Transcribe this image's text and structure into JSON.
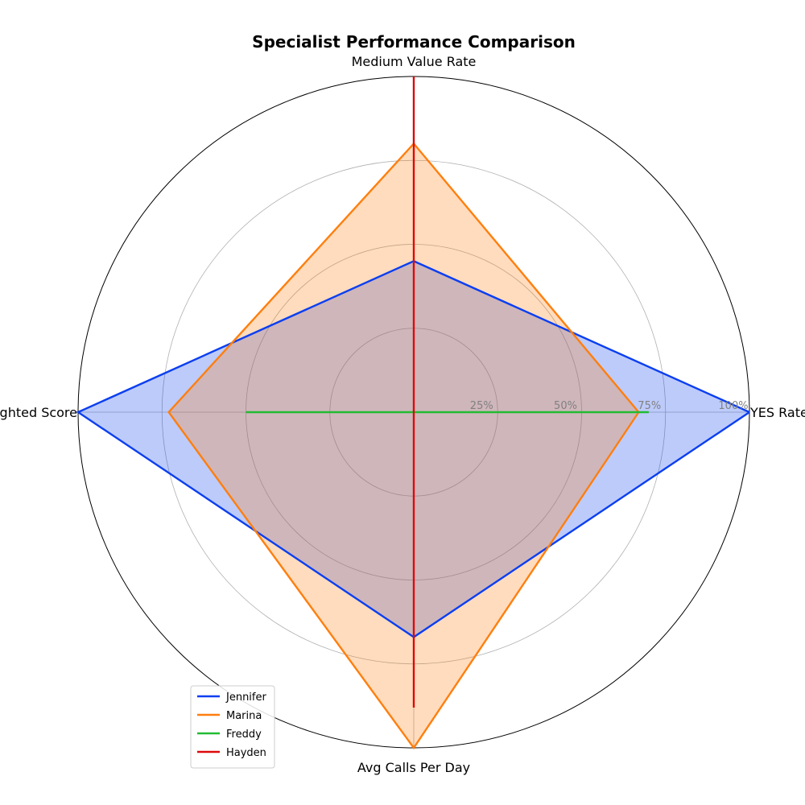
{
  "chart_data": {
    "type": "radar",
    "title": "Specialist Performance Comparison",
    "axes": [
      "YES Rate",
      "Medium Value Rate",
      "Weighted Score",
      "Avg Calls Per Day"
    ],
    "rlim": [
      0,
      100
    ],
    "r_ticks": [
      25,
      50,
      75,
      100
    ],
    "r_tick_labels": [
      "25%",
      "50%",
      "75%",
      "100%"
    ],
    "grid": true,
    "legend_position": "bottom-left",
    "series": [
      {
        "name": "Jennifer",
        "color": "#0b3ff0",
        "fill": true,
        "values": [
          100,
          45,
          100,
          67
        ]
      },
      {
        "name": "Marina",
        "color": "#ff7f0e",
        "fill": true,
        "values": [
          67,
          80,
          73,
          100
        ]
      },
      {
        "name": "Freddy",
        "color": "#22bb33",
        "fill": false,
        "values": [
          70,
          0,
          50,
          0
        ]
      },
      {
        "name": "Hayden",
        "color": "#dd0a0a",
        "fill": false,
        "values": [
          0,
          100,
          0,
          88
        ]
      }
    ]
  }
}
